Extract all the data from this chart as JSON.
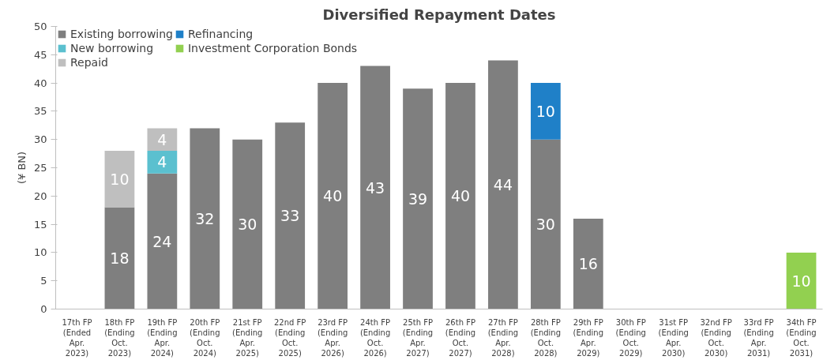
{
  "chart_data": {
    "type": "bar",
    "title": "Diversified Repayment Dates",
    "ylabel": "(¥ BN)",
    "stacked": true,
    "data_labels": true,
    "grid": false,
    "legend": "top",
    "categories": [
      "17th FP\n(Ended\nApr.\n2023)",
      "18th FP\n(Ending\nOct.\n2023)",
      "19th FP\n(Ending\nApr.\n2024)",
      "20th FP\n(Ending\nOct.\n2024)",
      "21st FP\n(Ending\nApr.\n2025)",
      "22nd FP\n(Ending\nOct.\n2025)",
      "23rd FP\n(Ending\nApr.\n2026)",
      "24th FP\n(Ending\nOct.\n2026)",
      "25th FP\n(Ending\nApr.\n2027)",
      "26th FP\n(Ending\nOct.\n2027)",
      "27th FP\n(Ending\nApr.\n2028)",
      "28th FP\n(Ending\nOct.\n2028)",
      "29th FP\n(Ending\nApr.\n2029)",
      "30th FP\n(Ending\nOct.\n2029)",
      "31st FP\n(Ending\nApr.\n2030)",
      "32nd FP\n(Ending\nOct.\n2030)",
      "33rd FP\n(Ending\nApr.\n2031)",
      "34th FP\n(Ending\nOct.\n2031)"
    ],
    "series": [
      {
        "name": "Existing borrowing",
        "color": "#7f7f7f",
        "values": [
          null,
          18,
          24,
          32,
          30,
          33,
          40,
          43,
          39,
          40,
          44,
          30,
          16,
          null,
          null,
          null,
          null,
          null
        ]
      },
      {
        "name": "New borrowing",
        "color": "#5bc0cf",
        "values": [
          null,
          null,
          4,
          null,
          null,
          null,
          null,
          null,
          null,
          null,
          null,
          null,
          null,
          null,
          null,
          null,
          null,
          null
        ]
      },
      {
        "name": "Repaid",
        "color": "#bfbfbf",
        "values": [
          null,
          10,
          4,
          null,
          null,
          null,
          null,
          null,
          null,
          null,
          null,
          null,
          null,
          null,
          null,
          null,
          null,
          null
        ]
      },
      {
        "name": "Refinancing",
        "color": "#1f80c8",
        "values": [
          null,
          null,
          null,
          null,
          null,
          null,
          null,
          null,
          null,
          null,
          null,
          10,
          null,
          null,
          null,
          null,
          null,
          null
        ]
      },
      {
        "name": "Investment Corporation Bonds",
        "color": "#92d050",
        "values": [
          null,
          null,
          null,
          null,
          null,
          null,
          null,
          null,
          null,
          null,
          null,
          null,
          null,
          null,
          null,
          null,
          null,
          10
        ]
      }
    ],
    "ylim": [
      0,
      50
    ],
    "yticks": [
      0,
      5,
      10,
      15,
      20,
      25,
      30,
      35,
      40,
      45,
      50
    ]
  }
}
